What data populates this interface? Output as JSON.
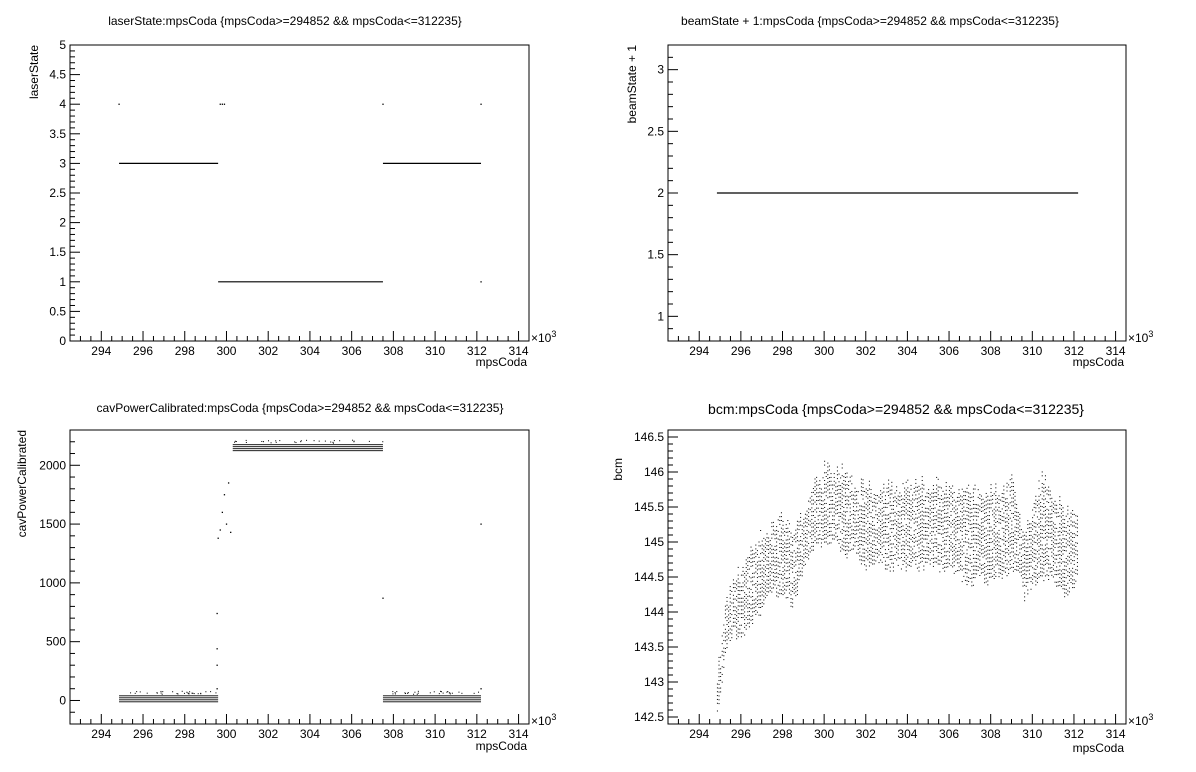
{
  "chart_data": [
    {
      "type": "scatter",
      "title": "laserState:mpsCoda {mpsCoda>=294852 && mpsCoda<=312235}",
      "xlabel": "mpsCoda",
      "ylabel": "laserState",
      "x_multiplier_label": "×10",
      "x_multiplier_exp": "3",
      "xlim": [
        292.5,
        314.5
      ],
      "ylim": [
        0,
        5
      ],
      "xticks": [
        "294",
        "296",
        "298",
        "300",
        "302",
        "304",
        "306",
        "308",
        "310",
        "312",
        "314"
      ],
      "yticks": [
        "0",
        "0.5",
        "1",
        "1.5",
        "2",
        "2.5",
        "3",
        "3.5",
        "4",
        "4.5",
        "5"
      ],
      "grid": false,
      "segments": [
        {
          "x0": 294.85,
          "x1": 299.6,
          "y": 3
        },
        {
          "x0": 299.6,
          "x1": 307.5,
          "y": 1
        },
        {
          "x0": 307.5,
          "x1": 312.2,
          "y": 3
        }
      ],
      "points": [
        {
          "x": 294.85,
          "y": 4
        },
        {
          "x": 299.7,
          "y": 4
        },
        {
          "x": 299.8,
          "y": 4
        },
        {
          "x": 299.9,
          "y": 4
        },
        {
          "x": 307.5,
          "y": 4
        },
        {
          "x": 312.2,
          "y": 4
        },
        {
          "x": 312.2,
          "y": 1
        }
      ]
    },
    {
      "type": "scatter",
      "title": "beamState + 1:mpsCoda {mpsCoda>=294852 && mpsCoda<=312235}",
      "xlabel": "mpsCoda",
      "ylabel": "beamState + 1",
      "x_multiplier_label": "×10",
      "x_multiplier_exp": "3",
      "xlim": [
        292.5,
        314.5
      ],
      "ylim": [
        0.8,
        3.2
      ],
      "xticks": [
        "294",
        "296",
        "298",
        "300",
        "302",
        "304",
        "306",
        "308",
        "310",
        "312",
        "314"
      ],
      "yticks": [
        "1",
        "1.5",
        "2",
        "2.5",
        "3"
      ],
      "grid": false,
      "segments": [
        {
          "x0": 294.85,
          "x1": 312.2,
          "y": 2
        }
      ],
      "points": []
    },
    {
      "type": "scatter",
      "title": "cavPowerCalibrated:mpsCoda {mpsCoda>=294852 && mpsCoda<=312235}",
      "xlabel": "mpsCoda",
      "ylabel": "cavPowerCalibrated",
      "x_multiplier_label": "×10",
      "x_multiplier_exp": "3",
      "xlim": [
        292.5,
        314.5
      ],
      "ylim": [
        -200,
        2300
      ],
      "xticks": [
        "294",
        "296",
        "298",
        "300",
        "302",
        "304",
        "306",
        "308",
        "310",
        "312",
        "314"
      ],
      "yticks": [
        "0",
        "500",
        "1000",
        "1500",
        "2000"
      ],
      "grid": false,
      "bands": [
        {
          "x0": 294.85,
          "x1": 299.6,
          "ymin": -15,
          "ymax": 40
        },
        {
          "x0": 300.3,
          "x1": 307.5,
          "ymin": 2120,
          "ymax": 2175
        },
        {
          "x0": 307.5,
          "x1": 312.2,
          "ymin": -15,
          "ymax": 40
        }
      ],
      "points": [
        {
          "x": 299.6,
          "y": 1380
        },
        {
          "x": 299.7,
          "y": 1450
        },
        {
          "x": 299.8,
          "y": 1600
        },
        {
          "x": 299.9,
          "y": 1750
        },
        {
          "x": 300.0,
          "y": 1500
        },
        {
          "x": 300.1,
          "y": 1850
        },
        {
          "x": 300.2,
          "y": 1430
        },
        {
          "x": 299.55,
          "y": 740
        },
        {
          "x": 299.55,
          "y": 440
        },
        {
          "x": 299.55,
          "y": 300
        },
        {
          "x": 299.55,
          "y": 100
        },
        {
          "x": 307.5,
          "y": 870
        },
        {
          "x": 312.2,
          "y": 1500
        },
        {
          "x": 312.2,
          "y": 100
        }
      ]
    },
    {
      "type": "scatter",
      "title": "bcm:mpsCoda {mpsCoda>=294852 && mpsCoda<=312235}",
      "xlabel": "mpsCoda",
      "ylabel": "bcm",
      "x_multiplier_label": "×10",
      "x_multiplier_exp": "3",
      "xlim": [
        292.5,
        314.5
      ],
      "ylim": [
        142.4,
        146.6
      ],
      "xticks": [
        "294",
        "296",
        "298",
        "300",
        "302",
        "304",
        "306",
        "308",
        "310",
        "312",
        "314"
      ],
      "yticks": [
        "142.5",
        "143",
        "143.5",
        "144",
        "144.5",
        "145",
        "145.5",
        "146",
        "146.5"
      ],
      "grid": false,
      "envelope": [
        {
          "x": 294.85,
          "lo": 142.6,
          "hi": 143.2
        },
        {
          "x": 295.0,
          "lo": 142.8,
          "hi": 143.6
        },
        {
          "x": 295.3,
          "lo": 143.5,
          "hi": 144.3
        },
        {
          "x": 295.6,
          "lo": 143.7,
          "hi": 144.6
        },
        {
          "x": 296.0,
          "lo": 143.6,
          "hi": 144.7
        },
        {
          "x": 296.4,
          "lo": 143.8,
          "hi": 145.0
        },
        {
          "x": 296.8,
          "lo": 143.9,
          "hi": 145.2
        },
        {
          "x": 297.2,
          "lo": 144.2,
          "hi": 145.3
        },
        {
          "x": 297.6,
          "lo": 144.3,
          "hi": 145.4
        },
        {
          "x": 298.0,
          "lo": 144.2,
          "hi": 145.5
        },
        {
          "x": 298.5,
          "lo": 144.1,
          "hi": 145.2
        },
        {
          "x": 299.0,
          "lo": 144.6,
          "hi": 145.6
        },
        {
          "x": 299.5,
          "lo": 144.9,
          "hi": 145.9
        },
        {
          "x": 300.0,
          "lo": 145.0,
          "hi": 146.2
        },
        {
          "x": 300.5,
          "lo": 145.0,
          "hi": 146.1
        },
        {
          "x": 301.0,
          "lo": 144.8,
          "hi": 146.2
        },
        {
          "x": 301.5,
          "lo": 144.9,
          "hi": 145.9
        },
        {
          "x": 302.0,
          "lo": 144.6,
          "hi": 146.0
        },
        {
          "x": 302.5,
          "lo": 144.7,
          "hi": 145.9
        },
        {
          "x": 303.0,
          "lo": 144.6,
          "hi": 146.0
        },
        {
          "x": 303.5,
          "lo": 144.6,
          "hi": 145.9
        },
        {
          "x": 304.0,
          "lo": 144.6,
          "hi": 146.0
        },
        {
          "x": 304.5,
          "lo": 144.6,
          "hi": 146.0
        },
        {
          "x": 305.0,
          "lo": 144.7,
          "hi": 145.9
        },
        {
          "x": 305.5,
          "lo": 144.6,
          "hi": 146.0
        },
        {
          "x": 306.0,
          "lo": 144.6,
          "hi": 145.9
        },
        {
          "x": 306.5,
          "lo": 144.5,
          "hi": 145.8
        },
        {
          "x": 307.0,
          "lo": 144.4,
          "hi": 145.9
        },
        {
          "x": 307.5,
          "lo": 144.5,
          "hi": 145.8
        },
        {
          "x": 308.0,
          "lo": 144.4,
          "hi": 145.9
        },
        {
          "x": 308.5,
          "lo": 144.5,
          "hi": 145.8
        },
        {
          "x": 309.0,
          "lo": 144.6,
          "hi": 146.1
        },
        {
          "x": 309.3,
          "lo": 144.6,
          "hi": 145.5
        },
        {
          "x": 309.6,
          "lo": 144.2,
          "hi": 145.3
        },
        {
          "x": 310.0,
          "lo": 144.4,
          "hi": 145.6
        },
        {
          "x": 310.5,
          "lo": 144.5,
          "hi": 146.1
        },
        {
          "x": 311.0,
          "lo": 144.5,
          "hi": 145.8
        },
        {
          "x": 311.5,
          "lo": 144.2,
          "hi": 145.6
        },
        {
          "x": 312.0,
          "lo": 144.4,
          "hi": 145.5
        },
        {
          "x": 312.2,
          "lo": 144.6,
          "hi": 145.4
        }
      ]
    }
  ]
}
